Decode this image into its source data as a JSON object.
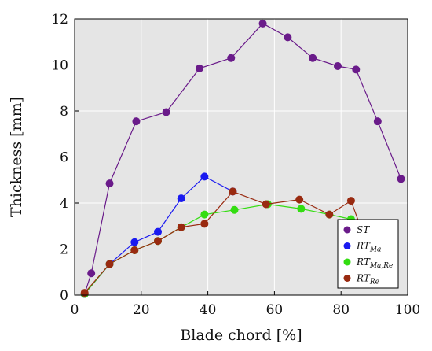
{
  "chart_data": {
    "type": "line",
    "xlabel": "Blade chord [%]",
    "ylabel": "Thickness [mm]",
    "xlim": [
      0,
      100
    ],
    "ylim": [
      0,
      12
    ],
    "xticks": [
      "0",
      "20",
      "40",
      "60",
      "80",
      "100"
    ],
    "yticks": [
      "0",
      "2",
      "4",
      "6",
      "8",
      "10",
      "12"
    ],
    "grid": true,
    "legend_position": "bottom-right",
    "series": [
      {
        "name": "ST",
        "name_base": "ST",
        "name_sub": "",
        "color": "#6a1b8a",
        "x": [
          3,
          5,
          10.5,
          18.5,
          27.5,
          37.5,
          47,
          56.5,
          64,
          71.5,
          79,
          84.5,
          91,
          98
        ],
        "y": [
          0.05,
          0.95,
          4.85,
          7.55,
          7.95,
          9.85,
          10.3,
          11.8,
          11.2,
          10.3,
          9.95,
          9.8,
          7.55,
          5.05
        ]
      },
      {
        "name": "RTMa",
        "name_base": "RT",
        "name_sub": "Ma",
        "color": "#1a1af0",
        "x": [
          3,
          10.5,
          18,
          25,
          32,
          39,
          47.5
        ],
        "y": [
          0.05,
          1.35,
          2.3,
          2.75,
          4.2,
          5.15,
          4.5
        ]
      },
      {
        "name": "RTMa,Re",
        "name_base": "RT",
        "name_sub": "Ma,Re",
        "color": "#33dd11",
        "x": [
          3,
          10.5,
          18,
          25,
          32,
          39,
          48,
          58,
          68,
          76.5,
          83,
          86.5
        ],
        "y": [
          0.05,
          1.35,
          1.95,
          2.35,
          2.95,
          3.5,
          3.7,
          3.95,
          3.75,
          3.5,
          3.3,
          2.7
        ]
      },
      {
        "name": "RTRe",
        "name_base": "RT",
        "name_sub": "Re",
        "color": "#992a10",
        "x": [
          3,
          10.5,
          18,
          25,
          32,
          39,
          47.5,
          57.5,
          67.5,
          76.5,
          83,
          86.5
        ],
        "y": [
          0.1,
          1.35,
          1.95,
          2.35,
          2.95,
          3.1,
          4.5,
          3.95,
          4.15,
          3.5,
          4.1,
          2.7
        ]
      }
    ]
  }
}
